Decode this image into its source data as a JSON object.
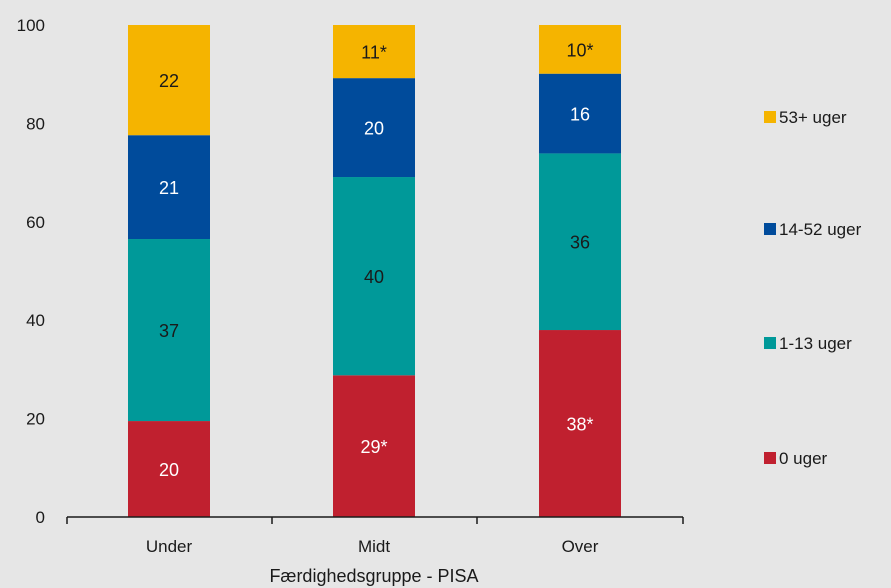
{
  "chart_data": {
    "type": "bar",
    "stacked": true,
    "categories": [
      "Under",
      "Midt",
      "Over"
    ],
    "series": [
      {
        "name": "0 uger",
        "values": [
          19.5,
          28.8,
          38.0
        ],
        "labels": [
          "20",
          "29*",
          "38*"
        ],
        "color": "#c0202f",
        "label_color": "#ffffff"
      },
      {
        "name": "1-13 uger",
        "values": [
          37.0,
          40.3,
          35.9
        ],
        "labels": [
          "37",
          "40",
          "36"
        ],
        "color": "#009999",
        "label_color": "#1a1a1a"
      },
      {
        "name": "14-52 uger",
        "values": [
          21.1,
          20.1,
          16.2
        ],
        "labels": [
          "21",
          "20",
          "16"
        ],
        "color": "#004b9b",
        "label_color": "#ffffff"
      },
      {
        "name": "53+ uger",
        "values": [
          22.4,
          10.8,
          9.9
        ],
        "labels": [
          "22",
          "11*",
          "10*"
        ],
        "color": "#f5b400",
        "label_color": "#1a1a1a"
      }
    ],
    "ylim": [
      0,
      100
    ],
    "yticks": [
      0,
      20,
      40,
      60,
      80,
      100
    ],
    "xlabel": "Færdighedsgruppe - PISA",
    "ylabel": "",
    "grid": false,
    "legend_position": "right",
    "legend_order": [
      "53+ uger",
      "14-52 uger",
      "1-13 uger",
      "0 uger"
    ]
  }
}
